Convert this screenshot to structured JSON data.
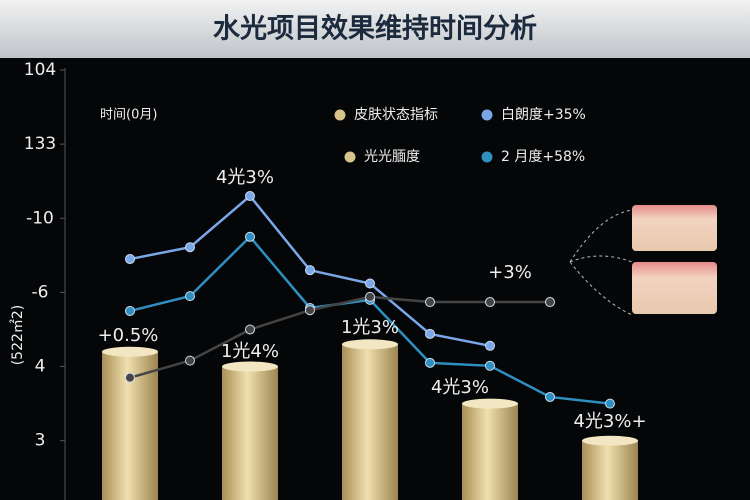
{
  "chart_data": {
    "type": "bar-line",
    "title": "水光项目效果维持时间分析",
    "axis_note": "时间(0月)",
    "ylabel": "(522㎡2)",
    "categories": [
      null,
      null,
      null,
      null,
      null,
      null,
      null,
      null,
      null
    ],
    "ylim": [
      0.2,
      6
    ],
    "yticks": [
      {
        "value": 6,
        "label": "104"
      },
      {
        "value": 5,
        "label": "133"
      },
      {
        "value": 4,
        "label": "-10"
      },
      {
        "value": 3,
        "label": "-6"
      },
      {
        "value": 2,
        "label": "4"
      },
      {
        "value": 1,
        "label": "3"
      }
    ],
    "bars": {
      "name": "皮肤状态指标",
      "color": "#d8c48a",
      "values": [
        2.2,
        null,
        2.0,
        null,
        2.3,
        null,
        1.5,
        null,
        1.0
      ]
    },
    "series": [
      {
        "name": "白朗度+35%",
        "color": "#7aa7e8",
        "values": [
          3.45,
          3.61,
          4.3,
          3.3,
          3.12,
          2.44,
          2.28,
          null,
          null
        ]
      },
      {
        "name": "2 月度+58%",
        "color": "#2e8fc0",
        "values": [
          2.75,
          2.95,
          3.75,
          2.79,
          2.9,
          2.05,
          2.01,
          1.59,
          1.5
        ]
      },
      {
        "name": "光光腼度",
        "color": "#444444",
        "values": [
          1.85,
          2.08,
          2.5,
          2.76,
          2.94,
          2.87,
          2.87,
          2.87,
          null
        ]
      }
    ],
    "annotations": [
      "4光3%",
      "+0.5%",
      "1光4%",
      "1光3%",
      "+3%",
      "4光3%",
      "4光3%+"
    ]
  }
}
